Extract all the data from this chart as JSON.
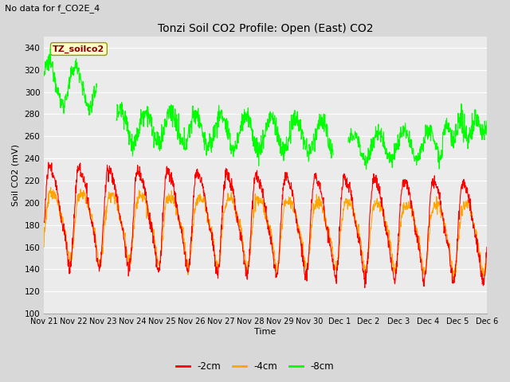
{
  "title": "Tonzi Soil CO2 Profile: Open (East) CO2",
  "subtitle": "No data for f_CO2E_4",
  "ylabel": "Soil CO2 (mV)",
  "xlabel": "Time",
  "legend_label": "TZ_soilco2",
  "series_labels": [
    "-2cm",
    "-4cm",
    "-8cm"
  ],
  "series_colors": [
    "#ff0000",
    "#ffa500",
    "#00ff00"
  ],
  "ylim": [
    100,
    350
  ],
  "background_color": "#d8d8d8",
  "plot_bg_color": "#ebebeb",
  "grid_color": "#ffffff",
  "tick_labels": [
    "Nov 21",
    "Nov 22",
    "Nov 23",
    "Nov 24",
    "Nov 25",
    "Nov 26",
    "Nov 27",
    "Nov 28",
    "Nov 29",
    "Nov 30",
    "Dec 1",
    "Dec 2",
    "Dec 3",
    "Dec 4",
    "Dec 5",
    "Dec 6"
  ],
  "n_points": 1500,
  "legend_box_color": "#ffffcc",
  "legend_text_color": "#8b0000",
  "title_fontsize": 10,
  "subtitle_fontsize": 8,
  "tick_fontsize": 7,
  "ylabel_fontsize": 8,
  "xlabel_fontsize": 8
}
